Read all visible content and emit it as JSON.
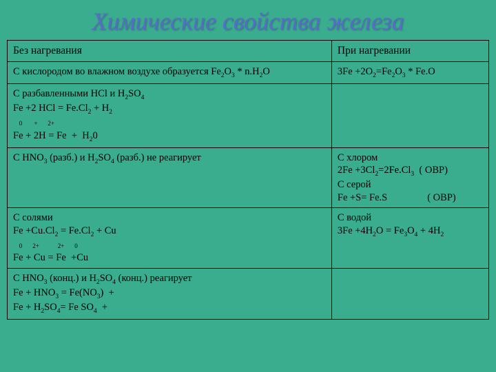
{
  "title": "Химические свойства железа",
  "background_color": "#3aad8f",
  "title_color": "#5a6cc9",
  "table": {
    "rows": [
      {
        "left": "Без нагревания",
        "right": "При нагревании",
        "is_header": true
      },
      {
        "left_html": "С кислородом во влажном воздухе образуется Fe<sub>2</sub>O<sub>3</sub> * n.H<sub>2</sub>O",
        "right_html": "3Fe +2O<sub>2</sub>=Fe<sub>2</sub>O<sub>3</sub> * Fe.O"
      },
      {
        "left_html": "С разбавленными HCl и H<sub>2</sub>SO<sub>4</sub><br>Fe +2 HCl = Fe.Cl<sub>2</sub> + H<sub>2</sub><br><span class='sup-row'>0</span><span class='sup-row'>+</span><span class='sup-row'>2+</span><br>Fe + 2H = Fe&nbsp;&nbsp;+&nbsp;&nbsp;H<sub>2</sub>0",
        "right_html": ""
      },
      {
        "left_html": "С HNO<sub>3</sub> (разб.) и H<sub>2</sub>SO<sub>4</sub> (разб.) не реагирует",
        "right_html": "С хлором<br>2Fe +3Cl<sub>2</sub>=2Fe.Cl<sub>3</sub>&nbsp;&nbsp;(&nbsp;ОВР)<br>С серой<br>Fe +S= Fe.S&nbsp;&nbsp;&nbsp;&nbsp;&nbsp;&nbsp;&nbsp;&nbsp;&nbsp;&nbsp;&nbsp;&nbsp;&nbsp;&nbsp;&nbsp;&nbsp;(&nbsp;ОВР)"
      },
      {
        "left_html": "С солями<br>Fe +Cu.Cl<sub>2</sub> = Fe.Cl<sub>2</sub> + Cu<br><span class='sup-row'>0</span><span class='sup-row'>2+</span>&nbsp;&nbsp;&nbsp;&nbsp;<span class='sup-row'>2+</span><span class='sup-row'>0</span><br>Fe + Cu = Fe&nbsp;&nbsp;+Cu",
        "right_html": "С водой<br>3Fe +4H<sub>2</sub>O = Fe<sub>3</sub>O<sub>4</sub> + 4H<sub>2</sub>"
      },
      {
        "left_html": "С HNO<sub>3</sub> (конц.) и H<sub>2</sub>SO<sub>4</sub> (конц.) реагирует<br>Fe + HNO<sub>3</sub> = Fe(NO<sub>3</sub>)&nbsp;&nbsp;+<br>Fe + H<sub>2</sub>SO<sub>4</sub>= Fe SO<sub>4</sub>&nbsp;&nbsp;+",
        "right_html": ""
      }
    ]
  }
}
